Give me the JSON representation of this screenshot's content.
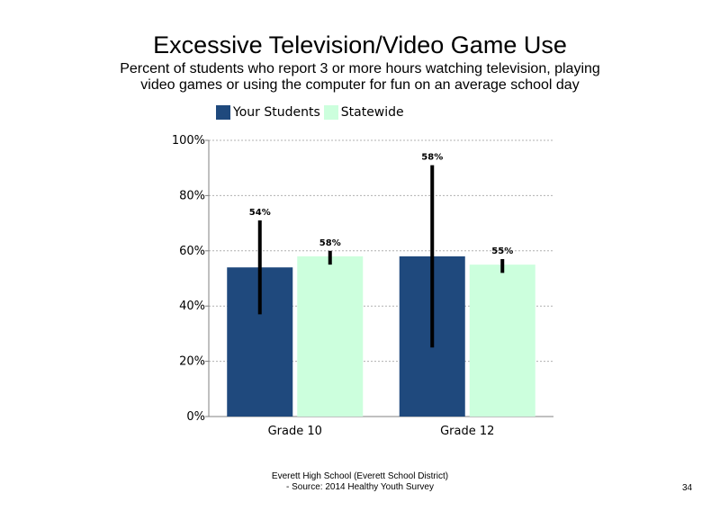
{
  "chart_data": {
    "type": "bar",
    "title": "Excessive Television/Video Game Use",
    "subtitle": "Percent of students who report 3 or more hours watching television, playing video games or using the computer for fun on an average school day",
    "categories": [
      "Grade 10",
      "Grade 12"
    ],
    "series": [
      {
        "name": "Your Students",
        "color": "#1f497d",
        "values": [
          54,
          58
        ],
        "error_low": [
          37,
          25
        ],
        "error_high": [
          71,
          91
        ],
        "labels": [
          "54%",
          "58%"
        ]
      },
      {
        "name": "Statewide",
        "color": "#ccffdd",
        "values": [
          58,
          55
        ],
        "error_low": [
          55,
          52
        ],
        "error_high": [
          60,
          57
        ],
        "labels": [
          "58%",
          "55%"
        ]
      }
    ],
    "yticks": [
      "0%",
      "20%",
      "40%",
      "60%",
      "80%",
      "100%"
    ],
    "ylim": [
      0,
      100
    ],
    "grid": true,
    "legend_position": "top-left"
  },
  "footer": {
    "line1": "Everett High School (Everett School District)",
    "line2": "- Source: 2014 Healthy Youth Survey"
  },
  "page_number": "34"
}
